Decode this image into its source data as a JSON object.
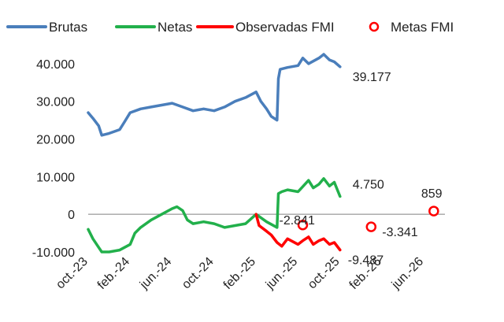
{
  "chart_data": {
    "type": "line",
    "title": "",
    "xlabel": "",
    "ylabel": "",
    "ylim": [
      -10000,
      45000
    ],
    "xlim": [
      "2023-10",
      "2026-08"
    ],
    "y_ticks": [
      {
        "value": 40000,
        "label": "40.000"
      },
      {
        "value": 30000,
        "label": "30.000"
      },
      {
        "value": 20000,
        "label": "20.000"
      },
      {
        "value": 10000,
        "label": "10.000"
      },
      {
        "value": 0,
        "label": "0"
      },
      {
        "value": -10000,
        "label": "-10.000"
      }
    ],
    "x_ticks": [
      {
        "value": "2023-10",
        "label": "oct.-23"
      },
      {
        "value": "2024-02",
        "label": "feb.-24"
      },
      {
        "value": "2024-06",
        "label": "jun.-24"
      },
      {
        "value": "2024-10",
        "label": "oct.-24"
      },
      {
        "value": "2025-02",
        "label": "feb.-25"
      },
      {
        "value": "2025-06",
        "label": "jun.-25"
      },
      {
        "value": "2025-10",
        "label": "oct.-25"
      },
      {
        "value": "2026-02",
        "label": "feb.-26"
      },
      {
        "value": "2026-06",
        "label": "jun.-26"
      }
    ],
    "legend_position": "top",
    "grid": false,
    "series": [
      {
        "name": "Brutas",
        "color": "#4a7ebb",
        "kind": "line",
        "points": [
          [
            "2023-10-01",
            27000
          ],
          [
            "2023-10-15",
            25500
          ],
          [
            "2023-11-01",
            23500
          ],
          [
            "2023-11-10",
            21000
          ],
          [
            "2023-12-01",
            21500
          ],
          [
            "2024-01-01",
            22500
          ],
          [
            "2024-01-15",
            24500
          ],
          [
            "2024-02-01",
            27000
          ],
          [
            "2024-03-01",
            28000
          ],
          [
            "2024-04-01",
            28500
          ],
          [
            "2024-05-01",
            29000
          ],
          [
            "2024-06-01",
            29500
          ],
          [
            "2024-07-01",
            28500
          ],
          [
            "2024-08-01",
            27500
          ],
          [
            "2024-09-01",
            28000
          ],
          [
            "2024-10-01",
            27500
          ],
          [
            "2024-11-01",
            28500
          ],
          [
            "2024-12-01",
            30000
          ],
          [
            "2025-01-01",
            31000
          ],
          [
            "2025-02-01",
            32500
          ],
          [
            "2025-02-15",
            30000
          ],
          [
            "2025-03-01",
            28000
          ],
          [
            "2025-03-15",
            26000
          ],
          [
            "2025-04-01",
            25000
          ],
          [
            "2025-04-05",
            36000
          ],
          [
            "2025-04-10",
            38500
          ],
          [
            "2025-05-01",
            39000
          ],
          [
            "2025-06-01",
            39500
          ],
          [
            "2025-06-15",
            41500
          ],
          [
            "2025-07-01",
            40000
          ],
          [
            "2025-08-01",
            41500
          ],
          [
            "2025-08-15",
            42500
          ],
          [
            "2025-09-01",
            41000
          ],
          [
            "2025-09-15",
            40500
          ],
          [
            "2025-10-01",
            39177
          ]
        ]
      },
      {
        "name": "Netas",
        "color": "#22b04b",
        "kind": "line",
        "points": [
          [
            "2023-10-01",
            -4000
          ],
          [
            "2023-10-15",
            -6500
          ],
          [
            "2023-11-10",
            -10000
          ],
          [
            "2023-12-01",
            -10000
          ],
          [
            "2024-01-01",
            -9500
          ],
          [
            "2024-02-01",
            -8000
          ],
          [
            "2024-02-15",
            -5000
          ],
          [
            "2024-03-01",
            -3500
          ],
          [
            "2024-04-01",
            -1500
          ],
          [
            "2024-05-01",
            0
          ],
          [
            "2024-06-01",
            1500
          ],
          [
            "2024-06-15",
            2000
          ],
          [
            "2024-07-01",
            1000
          ],
          [
            "2024-07-15",
            -1500
          ],
          [
            "2024-08-01",
            -2500
          ],
          [
            "2024-09-01",
            -2000
          ],
          [
            "2024-10-01",
            -2500
          ],
          [
            "2024-11-01",
            -3500
          ],
          [
            "2024-12-01",
            -3000
          ],
          [
            "2025-01-01",
            -2500
          ],
          [
            "2025-02-01",
            0
          ],
          [
            "2025-03-01",
            -2000
          ],
          [
            "2025-04-01",
            -3500
          ],
          [
            "2025-04-05",
            5500
          ],
          [
            "2025-04-15",
            6000
          ],
          [
            "2025-05-01",
            6500
          ],
          [
            "2025-06-01",
            6000
          ],
          [
            "2025-07-01",
            9000
          ],
          [
            "2025-07-15",
            7000
          ],
          [
            "2025-08-01",
            8000
          ],
          [
            "2025-08-15",
            9500
          ],
          [
            "2025-09-01",
            7500
          ],
          [
            "2025-09-15",
            8500
          ],
          [
            "2025-10-01",
            4750
          ]
        ]
      },
      {
        "name": "Observadas FMI",
        "color": "#ff0000",
        "kind": "line",
        "points": [
          [
            "2025-02-01",
            0
          ],
          [
            "2025-02-10",
            -3000
          ],
          [
            "2025-03-01",
            -4500
          ],
          [
            "2025-03-15",
            -5500
          ],
          [
            "2025-04-01",
            -7500
          ],
          [
            "2025-04-15",
            -8500
          ],
          [
            "2025-05-01",
            -6500
          ],
          [
            "2025-06-01",
            -8000
          ],
          [
            "2025-06-15",
            -7000
          ],
          [
            "2025-07-01",
            -6000
          ],
          [
            "2025-07-15",
            -8000
          ],
          [
            "2025-08-01",
            -7000
          ],
          [
            "2025-08-15",
            -6500
          ],
          [
            "2025-09-01",
            -8000
          ],
          [
            "2025-09-15",
            -7500
          ],
          [
            "2025-10-01",
            -9487
          ]
        ]
      },
      {
        "name": "Metas FMI",
        "color": "#ff0000",
        "kind": "marker",
        "points": [
          [
            "2025-06-15",
            -2841
          ],
          [
            "2025-12-31",
            -3341
          ],
          [
            "2026-06-30",
            859
          ]
        ]
      }
    ],
    "data_labels": [
      {
        "text": "39.177",
        "x": "2025-10-01",
        "y": 39177
      },
      {
        "text": "4.750",
        "x": "2025-10-01",
        "y": 4750
      },
      {
        "text": "-9.487",
        "x": "2025-10-01",
        "y": -9487
      },
      {
        "text": "-2.841",
        "x": "2025-06-15",
        "y": -2841
      },
      {
        "text": "-3.341",
        "x": "2025-12-31",
        "y": -3341
      },
      {
        "text": "859",
        "x": "2026-06-30",
        "y": 859
      }
    ]
  }
}
